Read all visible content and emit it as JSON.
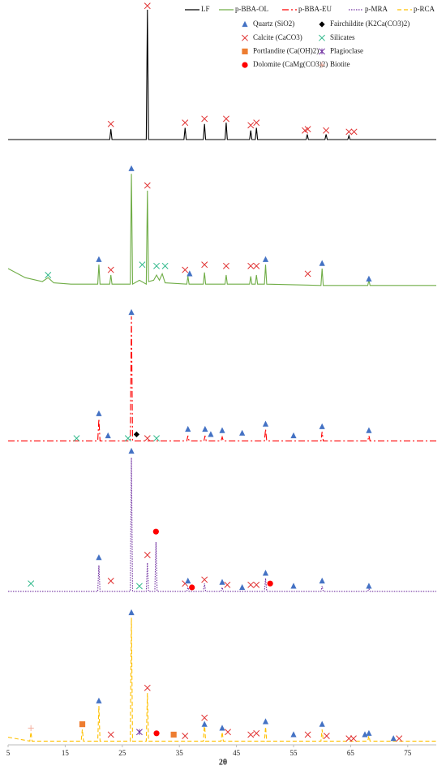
{
  "chart_data": {
    "type": "line",
    "xlabel": "2θ",
    "xlim": [
      5,
      80
    ],
    "xticks": [
      5,
      15,
      25,
      35,
      45,
      55,
      65,
      75
    ],
    "phases": [
      {
        "name": "Quartz (SiO2)",
        "symbol": "triangle",
        "color": "#4472c4"
      },
      {
        "name": "Calcite (CaCO3)",
        "symbol": "x",
        "color": "#e03030"
      },
      {
        "name": "Portlandite (Ca(OH)2)",
        "symbol": "square",
        "color": "#ed7d31"
      },
      {
        "name": "Dolomite (CaMg(CO3)2)",
        "symbol": "circle",
        "color": "#ff0000"
      },
      {
        "name": "Fairchildite (K2Ca(CO3)2)",
        "symbol": "diamond",
        "color": "#000000"
      },
      {
        "name": "Silicates",
        "symbol": "x",
        "color": "#2eb88a"
      },
      {
        "name": "Plagioclase",
        "symbol": "star",
        "color": "#7030a0"
      },
      {
        "name": "Biotite",
        "symbol": "plus",
        "color": "#f4b0a0"
      }
    ],
    "series": [
      {
        "name": "LF",
        "color": "#000000",
        "line_style": "solid",
        "x": [
          5,
          22.8,
          23,
          23.2,
          29.2,
          29.4,
          29.6,
          35.8,
          36,
          36.2,
          39.2,
          39.4,
          39.6,
          43,
          43.2,
          43.4,
          47.3,
          47.5,
          47.7,
          48.3,
          48.5,
          48.7,
          57.2,
          57.4,
          57.6,
          60.5,
          60.7,
          60.9,
          64.5,
          64.7,
          64.9,
          80
        ],
        "values": [
          0,
          0,
          8,
          0,
          0,
          100,
          0,
          0,
          9,
          0,
          0,
          12,
          0,
          0,
          13,
          0,
          0,
          7,
          0,
          0,
          9,
          0,
          0,
          4,
          0,
          0,
          4,
          0,
          0,
          3,
          0,
          0
        ],
        "markers": [
          {
            "phase": 1,
            "x": 23,
            "y": 12
          },
          {
            "phase": 1,
            "x": 29.4,
            "y": 103
          },
          {
            "phase": 1,
            "x": 36,
            "y": 13
          },
          {
            "phase": 1,
            "x": 39.4,
            "y": 16
          },
          {
            "phase": 1,
            "x": 43.2,
            "y": 16
          },
          {
            "phase": 1,
            "x": 47.5,
            "y": 11
          },
          {
            "phase": 1,
            "x": 48.5,
            "y": 13
          },
          {
            "phase": 1,
            "x": 57,
            "y": 7
          },
          {
            "phase": 1,
            "x": 57.5,
            "y": 8
          },
          {
            "phase": 1,
            "x": 60.7,
            "y": 7
          },
          {
            "phase": 1,
            "x": 64.7,
            "y": 6
          },
          {
            "phase": 1,
            "x": 65.6,
            "y": 6
          }
        ]
      },
      {
        "name": "p-BBA-OL",
        "color": "#70ad47",
        "line_style": "solid",
        "x": [
          5,
          8,
          11,
          12,
          13,
          16,
          20.7,
          20.9,
          21.1,
          22.8,
          23,
          23.2,
          26.4,
          26.6,
          26.8,
          28,
          29.2,
          29.4,
          29.6,
          30.5,
          31,
          31.5,
          32,
          32.5,
          36.3,
          36.5,
          36.7,
          39.2,
          39.4,
          39.6,
          43,
          43.2,
          43.4,
          47.3,
          47.5,
          47.7,
          48.3,
          48.5,
          48.7,
          49.9,
          50.1,
          50.3,
          59.8,
          60,
          60.2,
          68,
          68.2,
          68.4,
          80
        ],
        "values": [
          15,
          8,
          5,
          8,
          4,
          3,
          3,
          18,
          3,
          3,
          10,
          3,
          3,
          88,
          3,
          6,
          3,
          75,
          5,
          6,
          10,
          6,
          11,
          4,
          3,
          9,
          3,
          3,
          12,
          3,
          3,
          10,
          3,
          3,
          9,
          3,
          3,
          10,
          3,
          3,
          18,
          3,
          2,
          15,
          2,
          2,
          6,
          2,
          2
        ],
        "markers": [
          {
            "phase": 5,
            "x": 12,
            "y": 10
          },
          {
            "phase": 0,
            "x": 20.9,
            "y": 22
          },
          {
            "phase": 1,
            "x": 23,
            "y": 14
          },
          {
            "phase": 0,
            "x": 26.6,
            "y": 92
          },
          {
            "phase": 5,
            "x": 28.5,
            "y": 18
          },
          {
            "phase": 1,
            "x": 29.4,
            "y": 79
          },
          {
            "phase": 5,
            "x": 31,
            "y": 17
          },
          {
            "phase": 5,
            "x": 32.5,
            "y": 17
          },
          {
            "phase": 1,
            "x": 36,
            "y": 14
          },
          {
            "phase": 0,
            "x": 36.8,
            "y": 11
          },
          {
            "phase": 1,
            "x": 39.4,
            "y": 18
          },
          {
            "phase": 1,
            "x": 43.2,
            "y": 17
          },
          {
            "phase": 1,
            "x": 47.5,
            "y": 17
          },
          {
            "phase": 1,
            "x": 48.5,
            "y": 17
          },
          {
            "phase": 0,
            "x": 50.1,
            "y": 22
          },
          {
            "phase": 1,
            "x": 57.5,
            "y": 11
          },
          {
            "phase": 0,
            "x": 60,
            "y": 19
          },
          {
            "phase": 0,
            "x": 68.2,
            "y": 7
          }
        ]
      },
      {
        "name": "p-BBA-EU",
        "color": "#ff0000",
        "line_style": "dashdot",
        "x": [
          5,
          20.7,
          20.9,
          21.1,
          26.4,
          26.6,
          26.8,
          36.3,
          36.5,
          36.7,
          39.3,
          39.5,
          39.7,
          42.3,
          42.5,
          42.7,
          49.9,
          50.1,
          50.3,
          59.8,
          60,
          60.2,
          68,
          68.2,
          68.4,
          80
        ],
        "values": [
          1,
          1,
          18,
          1,
          1,
          97,
          1,
          1,
          5,
          1,
          1,
          5,
          1,
          1,
          4,
          1,
          1,
          10,
          1,
          1,
          8,
          1,
          1,
          5,
          1,
          1
        ],
        "markers": [
          {
            "phase": 5,
            "x": 17,
            "y": 3
          },
          {
            "phase": 0,
            "x": 20.9,
            "y": 22
          },
          {
            "phase": 0,
            "x": 22.5,
            "y": 5
          },
          {
            "phase": 5,
            "x": 26,
            "y": 3
          },
          {
            "phase": 0,
            "x": 26.6,
            "y": 100
          },
          {
            "phase": 4,
            "x": 27.5,
            "y": 6
          },
          {
            "phase": 1,
            "x": 29.4,
            "y": 3
          },
          {
            "phase": 5,
            "x": 31,
            "y": 3
          },
          {
            "phase": 0,
            "x": 36.5,
            "y": 10
          },
          {
            "phase": 0,
            "x": 39.5,
            "y": 10
          },
          {
            "phase": 0,
            "x": 40.5,
            "y": 6
          },
          {
            "phase": 0,
            "x": 42.5,
            "y": 9
          },
          {
            "phase": 0,
            "x": 46,
            "y": 7
          },
          {
            "phase": 0,
            "x": 50.1,
            "y": 14
          },
          {
            "phase": 0,
            "x": 55,
            "y": 5
          },
          {
            "phase": 0,
            "x": 60,
            "y": 12
          },
          {
            "phase": 0,
            "x": 68.2,
            "y": 9
          }
        ]
      },
      {
        "name": "p-MRA",
        "color": "#7030a0",
        "line_style": "dotted",
        "x": [
          5,
          20.7,
          20.9,
          21.1,
          26.4,
          26.6,
          26.8,
          29.2,
          29.4,
          29.6,
          30.7,
          30.9,
          31.1,
          36.3,
          36.5,
          36.7,
          39.2,
          39.4,
          39.6,
          42.3,
          42.5,
          42.7,
          49.9,
          50.1,
          50.3,
          59.8,
          60,
          60.2,
          68,
          68.2,
          68.4,
          80
        ],
        "values": [
          2,
          2,
          22,
          2,
          2,
          105,
          2,
          2,
          24,
          2,
          2,
          40,
          2,
          2,
          5,
          2,
          2,
          8,
          2,
          2,
          5,
          2,
          2,
          12,
          2,
          2,
          6,
          2,
          2,
          4,
          2,
          2
        ],
        "markers": [
          {
            "phase": 5,
            "x": 9,
            "y": 8
          },
          {
            "phase": 0,
            "x": 20.9,
            "y": 28
          },
          {
            "phase": 1,
            "x": 23,
            "y": 10
          },
          {
            "phase": 0,
            "x": 26.6,
            "y": 110
          },
          {
            "phase": 5,
            "x": 28,
            "y": 6
          },
          {
            "phase": 1,
            "x": 29.4,
            "y": 30
          },
          {
            "phase": 3,
            "x": 30.9,
            "y": 48
          },
          {
            "phase": 1,
            "x": 36,
            "y": 8
          },
          {
            "phase": 0,
            "x": 36.5,
            "y": 10
          },
          {
            "phase": 3,
            "x": 37.2,
            "y": 5
          },
          {
            "phase": 1,
            "x": 39.4,
            "y": 11
          },
          {
            "phase": 0,
            "x": 42.5,
            "y": 9
          },
          {
            "phase": 1,
            "x": 43.4,
            "y": 7
          },
          {
            "phase": 0,
            "x": 46,
            "y": 5
          },
          {
            "phase": 1,
            "x": 47.5,
            "y": 7
          },
          {
            "phase": 1,
            "x": 48.5,
            "y": 7
          },
          {
            "phase": 0,
            "x": 50.1,
            "y": 16
          },
          {
            "phase": 3,
            "x": 50.9,
            "y": 8
          },
          {
            "phase": 0,
            "x": 55,
            "y": 6
          },
          {
            "phase": 0,
            "x": 60,
            "y": 10
          },
          {
            "phase": 0,
            "x": 68.2,
            "y": 6
          }
        ]
      },
      {
        "name": "p-RCA",
        "color": "#ffc000",
        "line_style": "dashed",
        "x": [
          5,
          8.8,
          9,
          9.2,
          17.8,
          18,
          18.2,
          20.7,
          20.9,
          21.1,
          26.4,
          26.6,
          26.8,
          29.2,
          29.4,
          29.6,
          39.2,
          39.4,
          39.6,
          42.3,
          42.5,
          42.7,
          49.9,
          50.1,
          50.3,
          59.8,
          60,
          60.2,
          68,
          68.2,
          68.4,
          80
        ],
        "values": [
          4,
          1,
          8,
          1,
          1,
          10,
          1,
          1,
          28,
          1,
          1,
          96,
          1,
          1,
          38,
          1,
          1,
          15,
          1,
          1,
          8,
          1,
          1,
          12,
          1,
          1,
          10,
          1,
          1,
          5,
          1,
          1
        ],
        "markers": [
          {
            "phase": 7,
            "x": 9,
            "y": 11
          },
          {
            "phase": 2,
            "x": 18,
            "y": 14
          },
          {
            "phase": 0,
            "x": 20.9,
            "y": 32
          },
          {
            "phase": 1,
            "x": 23,
            "y": 6
          },
          {
            "phase": 0,
            "x": 26.6,
            "y": 100
          },
          {
            "phase": 6,
            "x": 28,
            "y": 8
          },
          {
            "phase": 1,
            "x": 29.4,
            "y": 42
          },
          {
            "phase": 3,
            "x": 31,
            "y": 7
          },
          {
            "phase": 2,
            "x": 34,
            "y": 6
          },
          {
            "phase": 1,
            "x": 36,
            "y": 5
          },
          {
            "phase": 1,
            "x": 39.4,
            "y": 19
          },
          {
            "phase": 0,
            "x": 39.4,
            "y": 14
          },
          {
            "phase": 0,
            "x": 42.5,
            "y": 11
          },
          {
            "phase": 1,
            "x": 43.5,
            "y": 8
          },
          {
            "phase": 1,
            "x": 47.5,
            "y": 6
          },
          {
            "phase": 1,
            "x": 48.5,
            "y": 7
          },
          {
            "phase": 0,
            "x": 50.1,
            "y": 16
          },
          {
            "phase": 0,
            "x": 55,
            "y": 6
          },
          {
            "phase": 1,
            "x": 57.5,
            "y": 6
          },
          {
            "phase": 0,
            "x": 60,
            "y": 14
          },
          {
            "phase": 1,
            "x": 60.8,
            "y": 5
          },
          {
            "phase": 1,
            "x": 64.7,
            "y": 3
          },
          {
            "phase": 1,
            "x": 65.5,
            "y": 3
          },
          {
            "phase": 0,
            "x": 67.5,
            "y": 6
          },
          {
            "phase": 0,
            "x": 68.2,
            "y": 7
          },
          {
            "phase": 0,
            "x": 72.5,
            "y": 3
          },
          {
            "phase": 1,
            "x": 73.5,
            "y": 3
          }
        ]
      }
    ]
  }
}
